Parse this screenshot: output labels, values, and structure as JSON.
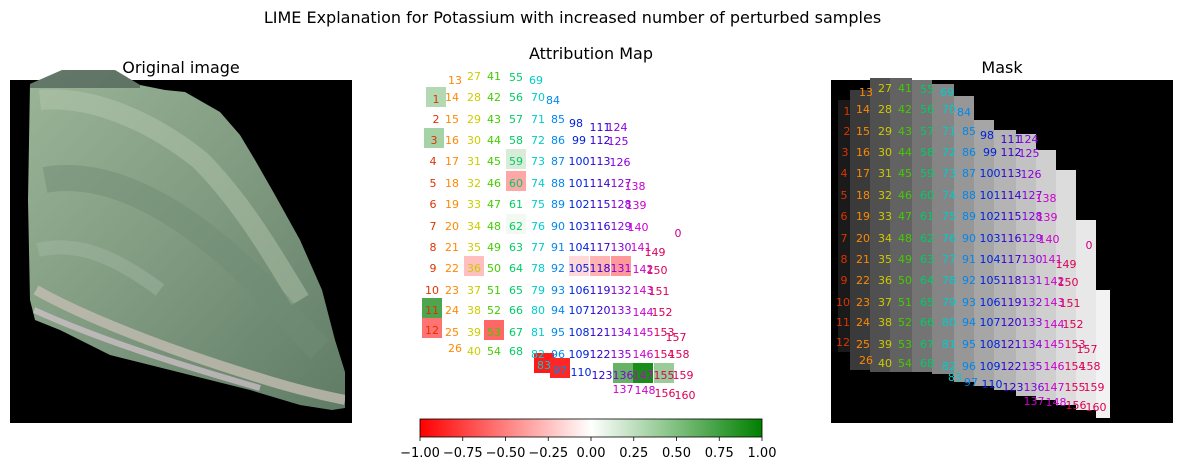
{
  "figure": {
    "suptitle": "LIME Explanation for Potassium with increased number of perturbed samples"
  },
  "panels": {
    "original": {
      "title": "Original image"
    },
    "attribution": {
      "title": "Attribution Map"
    },
    "mask": {
      "title": "Mask"
    }
  },
  "colorbar": {
    "colors": [
      "#ff0000",
      "#ffffff",
      "#008000"
    ],
    "ticks": [
      "−1.00",
      "−0.75",
      "−0.50",
      "−0.25",
      "0.00",
      "0.25",
      "0.50",
      "0.75",
      "1.00"
    ]
  },
  "chart_data": {
    "type": "heatmap",
    "title": "LIME Explanation for Potassium with increased number of perturbed samples",
    "colorbar_range": [
      -1.0,
      1.0
    ],
    "colorbar_ticks": [
      -1.0,
      -0.75,
      -0.5,
      -0.25,
      0.0,
      0.25,
      0.5,
      0.75,
      1.0
    ],
    "segment_labels_shown": "0-160",
    "highlighted_segments": [
      {
        "segment": 1,
        "sign": "positive",
        "approx_weight": 0.3
      },
      {
        "segment": 3,
        "sign": "positive",
        "approx_weight": 0.35
      },
      {
        "segment": 11,
        "sign": "positive",
        "approx_weight": 0.7
      },
      {
        "segment": 12,
        "sign": "negative",
        "approx_weight": -0.55
      },
      {
        "segment": 36,
        "sign": "negative",
        "approx_weight": -0.25
      },
      {
        "segment": 53,
        "sign": "negative",
        "approx_weight": -0.6
      },
      {
        "segment": 59,
        "sign": "positive",
        "approx_weight": 0.15
      },
      {
        "segment": 60,
        "sign": "negative",
        "approx_weight": -0.35
      },
      {
        "segment": 62,
        "sign": "positive",
        "approx_weight": 0.05
      },
      {
        "segment": 83,
        "sign": "negative",
        "approx_weight": -0.9
      },
      {
        "segment": 97,
        "sign": "negative",
        "approx_weight": -0.85
      },
      {
        "segment": 105,
        "sign": "negative",
        "approx_weight": -0.15
      },
      {
        "segment": 118,
        "sign": "negative",
        "approx_weight": -0.3
      },
      {
        "segment": 131,
        "sign": "negative",
        "approx_weight": -0.4
      },
      {
        "segment": 136,
        "sign": "positive",
        "approx_weight": 0.6
      },
      {
        "segment": 147,
        "sign": "positive",
        "approx_weight": 0.9
      },
      {
        "segment": 155,
        "sign": "positive",
        "approx_weight": 0.4
      }
    ]
  }
}
